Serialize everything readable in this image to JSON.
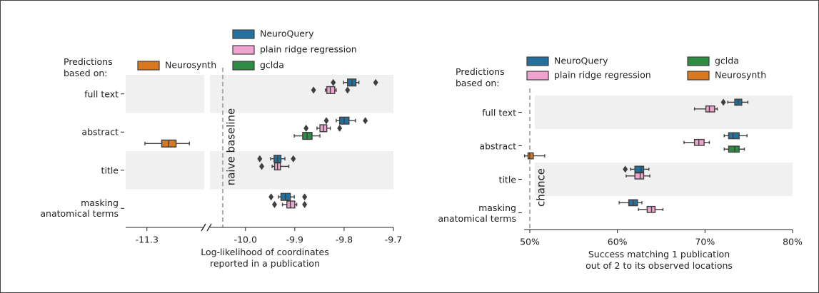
{
  "chart_data": [
    {
      "type": "box",
      "orientation": "horizontal",
      "legend_title": [
        "Predictions",
        "based on:"
      ],
      "categories": [
        "full text",
        "abstract",
        "title",
        "masking anatomical terms"
      ],
      "series": [
        {
          "name": "NeuroQuery",
          "color": "#23709c",
          "values": [
            {
              "whislo": -9.801,
              "q1": -9.793,
              "med": -9.784,
              "q3": -9.776,
              "whishi": -9.77,
              "fliers": [
                -9.822,
                -9.736
              ]
            },
            {
              "whislo": -9.816,
              "q1": -9.809,
              "med": -9.8,
              "q3": -9.79,
              "whishi": -9.777,
              "fliers": [
                -9.836,
                -9.757
              ]
            },
            {
              "whislo": -9.949,
              "q1": -9.942,
              "med": -9.935,
              "q3": -9.928,
              "whishi": -9.92,
              "fliers": [
                -9.971,
                -9.903
              ]
            },
            {
              "whislo": -9.933,
              "q1": -9.928,
              "med": -9.919,
              "q3": -9.909,
              "whishi": -9.901,
              "fliers": [
                -9.948,
                -9.88
              ]
            }
          ]
        },
        {
          "name": "plain ridge regression",
          "color": "#eea4cf",
          "values": [
            {
              "whislo": -9.838,
              "q1": -9.835,
              "med": -9.828,
              "q3": -9.819,
              "whishi": -9.816,
              "fliers": [
                -9.862,
                -9.793
              ]
            },
            {
              "whislo": -9.855,
              "q1": -9.849,
              "med": -9.842,
              "q3": -9.835,
              "whishi": -9.828,
              "fliers": [
                -9.877,
                -9.809
              ]
            },
            {
              "whislo": -9.946,
              "q1": -9.941,
              "med": -9.935,
              "q3": -9.929,
              "whishi": -9.912,
              "fliers": [
                -9.967
              ]
            },
            {
              "whislo": -9.925,
              "q1": -9.916,
              "med": -9.909,
              "q3": -9.9,
              "whishi": -9.896,
              "fliers": [
                -9.941,
                -9.88
              ]
            }
          ]
        },
        {
          "name": "gclda",
          "color": "#2e8c45",
          "values": [
            null,
            {
              "whislo": -9.901,
              "q1": -9.884,
              "med": -9.875,
              "q3": -9.865,
              "whishi": -9.849
            },
            null,
            null
          ]
        },
        {
          "name": "Neurosynth",
          "color": "#d9781e",
          "values": [
            null,
            {
              "whislo": -11.304,
              "q1": -11.27,
              "med": -11.256,
              "q3": -11.241,
              "whishi": -11.214
            },
            null,
            null
          ]
        }
      ],
      "xlim": [
        -11.343,
        -9.7
      ],
      "xbreak": [
        -11.184,
        -10.072
      ],
      "xticks": [
        -11.3,
        {
          "value": -10.0,
          "label": "-10.0"
        },
        -9.9,
        -9.8,
        -9.7
      ],
      "xlabel": [
        "Log-likelihood of coordinates",
        "reported in a publication"
      ],
      "refline": {
        "value": -10.046,
        "label": "naive baseline"
      }
    },
    {
      "type": "box",
      "orientation": "horizontal",
      "legend_title": [
        "Predictions",
        "based on:"
      ],
      "categories": [
        "full text",
        "abstract",
        "title",
        "masking anatomical terms"
      ],
      "series": [
        {
          "name": "NeuroQuery",
          "color": "#23709c",
          "values": [
            {
              "whislo": 72.6,
              "q1": 73.4,
              "med": 73.8,
              "q3": 74.2,
              "whishi": 74.9,
              "fliers": [
                72.1
              ]
            },
            {
              "whislo": 72.2,
              "q1": 72.7,
              "med": 73.2,
              "q3": 73.9,
              "whishi": 74.8
            },
            {
              "whislo": 61.5,
              "q1": 62.0,
              "med": 62.7,
              "q3": 63.0,
              "whishi": 63.6,
              "fliers": [
                60.9
              ]
            },
            {
              "whislo": 60.2,
              "q1": 61.3,
              "med": 61.8,
              "q3": 62.3,
              "whishi": 62.8
            }
          ]
        },
        {
          "name": "plain ridge regression",
          "color": "#eea4cf",
          "values": [
            {
              "whislo": 68.8,
              "q1": 70.1,
              "med": 70.5,
              "q3": 71.1,
              "whishi": 71.4
            },
            {
              "whislo": 67.6,
              "q1": 68.8,
              "med": 69.3,
              "q3": 69.9,
              "whishi": 70.5
            },
            {
              "whislo": 61.0,
              "q1": 62.0,
              "med": 62.6,
              "q3": 63.0,
              "whishi": 63.7
            },
            {
              "whislo": 62.4,
              "q1": 63.4,
              "med": 63.9,
              "q3": 64.3,
              "whishi": 65.2
            }
          ]
        },
        {
          "name": "gclda",
          "color": "#2e8c45",
          "values": [
            null,
            {
              "whislo": 72.2,
              "q1": 72.7,
              "med": 73.4,
              "q3": 73.9,
              "whishi": 74.5
            },
            null,
            null
          ]
        },
        {
          "name": "Neurosynth",
          "color": "#d9781e",
          "values": [
            null,
            {
              "whislo": 49.4,
              "q1": 49.8,
              "med": 50.0,
              "q3": 50.4,
              "whishi": 51.7
            },
            null,
            null
          ]
        }
      ],
      "xlim": [
        49.35,
        80
      ],
      "xticks": [
        {
          "value": 50,
          "label": "50%"
        },
        {
          "value": 60,
          "label": "60%"
        },
        {
          "value": 70,
          "label": "70%"
        },
        {
          "value": 80,
          "label": "80%"
        }
      ],
      "xlabel": [
        "Success matching 1 publication",
        "out of 2 to its observed locations"
      ],
      "refline": {
        "value": 50,
        "label": "chance"
      }
    }
  ]
}
